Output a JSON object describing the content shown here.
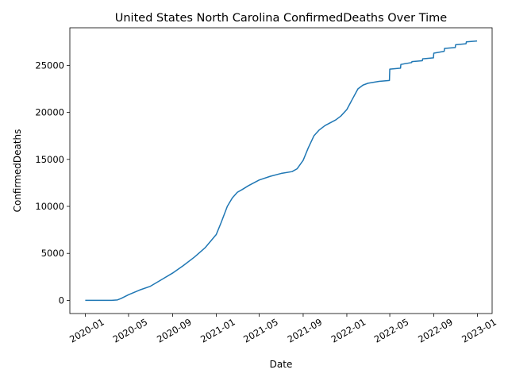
{
  "chart_data": {
    "type": "line",
    "title": "United States North Carolina ConfirmedDeaths Over Time",
    "xlabel": "Date",
    "ylabel": "ConfirmedDeaths",
    "x_ticks": [
      "2020-01",
      "2020-05",
      "2020-09",
      "2021-01",
      "2021-05",
      "2021-09",
      "2022-01",
      "2022-05",
      "2022-09",
      "2023-01"
    ],
    "y_ticks": [
      0,
      5000,
      10000,
      15000,
      20000,
      25000
    ],
    "ylim": [
      -1400,
      29000
    ],
    "xlim": [
      "2019-11-19",
      "2023-02-11"
    ],
    "grid": false,
    "legend": "none",
    "line_color": "#1f77b4",
    "series": [
      {
        "x": [
          "2020-01-01",
          "2020-03-15",
          "2020-03-31",
          "2020-04-10",
          "2020-05-01",
          "2020-06-01",
          "2020-07-01",
          "2020-08-01",
          "2020-09-01",
          "2020-10-01",
          "2020-11-01",
          "2020-12-01",
          "2021-01-01",
          "2021-01-15",
          "2021-02-01",
          "2021-02-15",
          "2021-03-01",
          "2021-03-15",
          "2021-04-01",
          "2021-05-01",
          "2021-06-01",
          "2021-07-01",
          "2021-08-01",
          "2021-08-15",
          "2021-09-01",
          "2021-09-15",
          "2021-10-01",
          "2021-10-15",
          "2021-11-01",
          "2021-12-01",
          "2021-12-15",
          "2022-01-01",
          "2022-01-15",
          "2022-02-01",
          "2022-02-15",
          "2022-03-01",
          "2022-04-01",
          "2022-04-30",
          "2022-05-01",
          "2022-05-31",
          "2022-06-01",
          "2022-07-01",
          "2022-07-02",
          "2022-07-31",
          "2022-08-01",
          "2022-08-31",
          "2022-09-01",
          "2022-09-30",
          "2022-10-01",
          "2022-10-31",
          "2022-11-01",
          "2022-11-30",
          "2022-12-01",
          "2022-12-31"
        ],
        "y": [
          0,
          0,
          50,
          200,
          600,
          1100,
          1500,
          2200,
          2900,
          3700,
          4600,
          5600,
          7000,
          8300,
          10000,
          10900,
          11500,
          11800,
          12200,
          12800,
          13200,
          13500,
          13700,
          14000,
          14900,
          16200,
          17500,
          18100,
          18600,
          19200,
          19600,
          20300,
          21300,
          22500,
          22900,
          23100,
          23300,
          23400,
          24600,
          24700,
          25100,
          25300,
          25400,
          25500,
          25700,
          25800,
          26300,
          26500,
          26800,
          26900,
          27200,
          27300,
          27500,
          27600
        ]
      }
    ]
  }
}
